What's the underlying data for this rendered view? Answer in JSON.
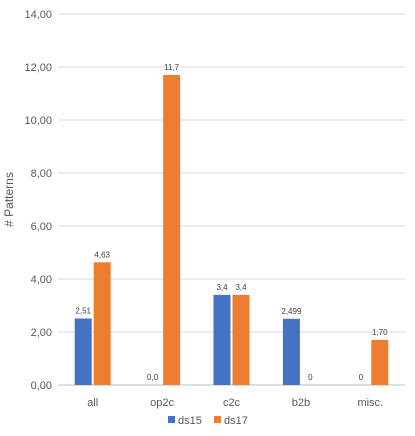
{
  "chart_data": {
    "type": "bar",
    "categories": [
      "all",
      "op2c",
      "c2c",
      "b2b",
      "misc."
    ],
    "series": [
      {
        "name": "ds15",
        "color": "#4472C4",
        "values": [
          2.51,
          0.0,
          3.4,
          2.499,
          0
        ],
        "labels": [
          "2,51",
          "0,0",
          "3,4",
          "2,499",
          "0"
        ]
      },
      {
        "name": "ds17",
        "color": "#ED7D31",
        "values": [
          4.63,
          11.7,
          3.4,
          0,
          1.7
        ],
        "labels": [
          "4,63",
          "11,7",
          "3,4",
          "0",
          "1,70"
        ]
      }
    ],
    "ylabel": "# Patterns",
    "ylim": [
      0,
      14
    ],
    "yticks": [
      0,
      2,
      4,
      6,
      8,
      10,
      12,
      14
    ],
    "ytick_labels": [
      "0,00",
      "2,00",
      "4,00",
      "6,00",
      "8,00",
      "10,00",
      "12,00",
      "14,00"
    ],
    "grid": true,
    "legend": "bottom"
  }
}
